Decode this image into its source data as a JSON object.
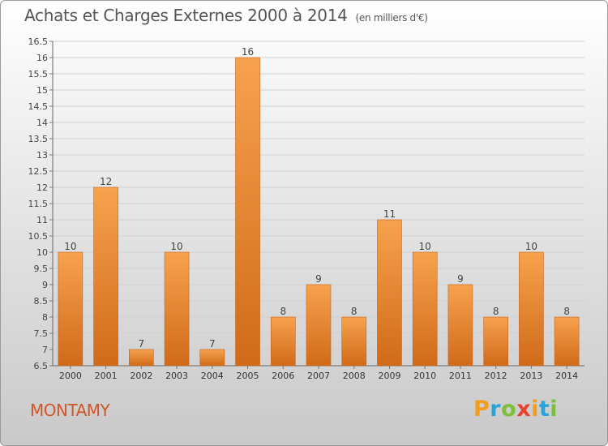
{
  "title": "Achats et Charges Externes 2000 à 2014",
  "unit": "(en milliers d'€)",
  "commune": "MONTAMY",
  "logo": {
    "text": "Proxiti",
    "letters": [
      {
        "ch": "P",
        "color": "#f39c1e"
      },
      {
        "ch": "r",
        "color": "#2aa3d8"
      },
      {
        "ch": "o",
        "color": "#7bbf3a"
      },
      {
        "ch": "x",
        "color": "#e8412c"
      },
      {
        "ch": "i",
        "color": "#f39c1e"
      },
      {
        "ch": "t",
        "color": "#2aa3d8"
      },
      {
        "ch": "i",
        "color": "#7bbf3a"
      }
    ]
  },
  "colors": {
    "bar_light": "#f7a24e",
    "bar_dark": "#d06a18",
    "commune": "#d2552a"
  },
  "chart_data": {
    "type": "bar",
    "categories": [
      "2000",
      "2001",
      "2002",
      "2003",
      "2004",
      "2005",
      "2006",
      "2007",
      "2008",
      "2009",
      "2010",
      "2011",
      "2012",
      "2013",
      "2014"
    ],
    "values": [
      10,
      12,
      7,
      10,
      7,
      16,
      8,
      9,
      8,
      11,
      10,
      9,
      8,
      10,
      8
    ],
    "ylim": [
      6.5,
      16.5
    ],
    "yticks": [
      "6.5",
      "7",
      "7.5",
      "8",
      "8.5",
      "9",
      "9.5",
      "10",
      "10.5",
      "11",
      "11.5",
      "12",
      "12.5",
      "13",
      "13.5",
      "14",
      "14.5",
      "15",
      "15.5",
      "16",
      "16.5"
    ],
    "grid": true
  }
}
